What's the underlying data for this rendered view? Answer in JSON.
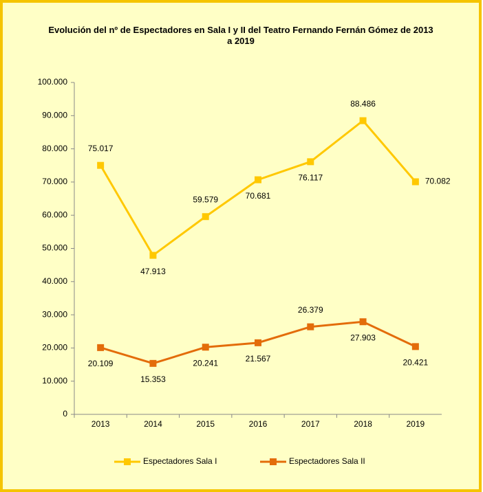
{
  "chart_data": {
    "type": "line",
    "title": "Evolución del nº de Espectadores en Sala I y II del Teatro Fernando Fernán Gómez de 2013 a 2019",
    "categories": [
      "2013",
      "2014",
      "2015",
      "2016",
      "2017",
      "2018",
      "2019"
    ],
    "series": [
      {
        "name": "Espectadores Sala I",
        "color": "#FFC800",
        "values": [
          75017,
          47913,
          59579,
          70681,
          76117,
          88486,
          70082
        ],
        "value_labels": [
          "75.017",
          "47.913",
          "59.579",
          "70.681",
          "76.117",
          "88.486",
          "70.082"
        ]
      },
      {
        "name": "Espectadores Sala II",
        "color": "#E36C0A",
        "values": [
          20109,
          15353,
          20241,
          21567,
          26379,
          27903,
          20421
        ],
        "value_labels": [
          "20.109",
          "15.353",
          "20.241",
          "21.567",
          "26.379",
          "27.903",
          "20.421"
        ]
      }
    ],
    "ylim": [
      0,
      100000
    ],
    "yticks": [
      0,
      {
        "value": 10000,
        "label": "10.000"
      },
      {
        "value": 20000,
        "label": "20.000"
      },
      {
        "value": 30000,
        "label": "30.000"
      },
      {
        "value": 40000,
        "label": "40.000"
      },
      {
        "value": 50000,
        "label": "50.000"
      },
      {
        "value": 60000,
        "label": "60.000"
      },
      {
        "value": 70000,
        "label": "70.000"
      },
      {
        "value": 80000,
        "label": "80.000"
      },
      {
        "value": 90000,
        "label": "90.000"
      },
      {
        "value": 100000,
        "label": "100.000"
      }
    ],
    "legend": "bottom"
  }
}
